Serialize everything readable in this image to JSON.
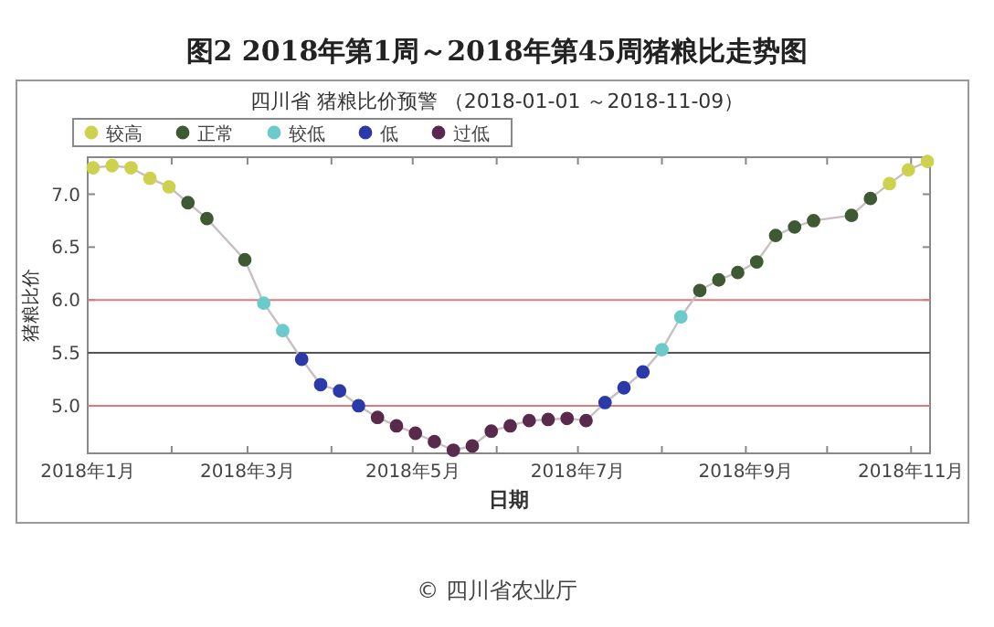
{
  "chart_data": {
    "type": "line",
    "title": "图2  2018年第1周～2018年第45周猪粮比走势图",
    "subtitle": "四川省 猪粮比价预警 （2018-01-01 ～2018-11-09）",
    "xlabel": "日期",
    "ylabel": "猪粮比价",
    "annotations": [
      "© 四川省农业厅"
    ],
    "xlim": [
      "2018-01-01",
      "2018-11-08"
    ],
    "ylim": [
      4.55,
      7.35
    ],
    "xticks": [
      {
        "value": "2018-01-01",
        "label": "2018年1月"
      },
      {
        "value": "2018-02-01",
        "label": null
      },
      {
        "value": "2018-03-01",
        "label": "2018年3月"
      },
      {
        "value": "2018-04-01",
        "label": null
      },
      {
        "value": "2018-05-01",
        "label": "2018年5月"
      },
      {
        "value": "2018-06-01",
        "label": null
      },
      {
        "value": "2018-07-01",
        "label": "2018年7月"
      },
      {
        "value": "2018-08-01",
        "label": null
      },
      {
        "value": "2018-09-01",
        "label": "2018年9月"
      },
      {
        "value": "2018-10-01",
        "label": null
      },
      {
        "value": "2018-11-01",
        "label": "2018年11月"
      }
    ],
    "yticks": [
      {
        "value": 5,
        "label": "5.0"
      },
      {
        "value": 5.5,
        "label": "5.5"
      },
      {
        "value": 6,
        "label": "6.0"
      },
      {
        "value": 6.5,
        "label": "6.5"
      },
      {
        "value": 7,
        "label": "7.0"
      }
    ],
    "ref_lines": [
      {
        "axis": "y",
        "value": 6,
        "color": "#e07a7a"
      },
      {
        "axis": "y",
        "value": 5.5,
        "color": "#555555"
      },
      {
        "axis": "y",
        "value": 5,
        "color": "#e07a7a"
      }
    ],
    "legend": "top left",
    "marker": "circle",
    "series": [
      {
        "marker": "none",
        "color": "#c9bfc3",
        "x": [
          "2018-01-03",
          "2018-01-10",
          "2018-01-17",
          "2018-01-24",
          "2018-01-31",
          "2018-02-07",
          "2018-02-14",
          "2018-02-28",
          "2018-03-07",
          "2018-03-14",
          "2018-03-21",
          "2018-03-28",
          "2018-04-04",
          "2018-04-11",
          "2018-04-18",
          "2018-04-25",
          "2018-05-02",
          "2018-05-09",
          "2018-05-16",
          "2018-05-23",
          "2018-05-30",
          "2018-06-06",
          "2018-06-13",
          "2018-06-20",
          "2018-06-27",
          "2018-07-04",
          "2018-07-11",
          "2018-07-18",
          "2018-07-25",
          "2018-08-01",
          "2018-08-08",
          "2018-08-15",
          "2018-08-22",
          "2018-08-29",
          "2018-09-05",
          "2018-09-12",
          "2018-09-19",
          "2018-09-26",
          "2018-10-10",
          "2018-10-17",
          "2018-10-24",
          "2018-10-31",
          "2018-11-07"
        ],
        "values": [
          7.25,
          7.27,
          7.25,
          7.15,
          7.07,
          6.92,
          6.77,
          6.38,
          5.97,
          5.71,
          5.44,
          5.2,
          5.14,
          5.0,
          4.89,
          4.81,
          4.74,
          4.66,
          4.58,
          4.62,
          4.76,
          4.81,
          4.86,
          4.87,
          4.88,
          4.86,
          5.03,
          5.17,
          5.32,
          5.53,
          5.84,
          6.09,
          6.19,
          6.26,
          6.36,
          6.61,
          6.69,
          6.75,
          6.8,
          6.96,
          7.1,
          7.23,
          7.31
        ]
      },
      {
        "type": "scatter",
        "name": "较高",
        "color": "#cdd24e",
        "x": [
          "2018-01-03",
          "2018-01-10",
          "2018-01-17",
          "2018-01-24",
          "2018-01-31",
          "2018-10-24",
          "2018-10-31",
          "2018-11-07"
        ],
        "values": [
          7.25,
          7.27,
          7.25,
          7.15,
          7.07,
          7.1,
          7.23,
          7.31
        ]
      },
      {
        "type": "scatter",
        "name": "正常",
        "color": "#3e5a32",
        "x": [
          "2018-02-07",
          "2018-02-14",
          "2018-02-28",
          "2018-08-15",
          "2018-08-22",
          "2018-08-29",
          "2018-09-05",
          "2018-09-12",
          "2018-09-19",
          "2018-09-26",
          "2018-10-10",
          "2018-10-17"
        ],
        "values": [
          6.92,
          6.77,
          6.38,
          6.09,
          6.19,
          6.26,
          6.36,
          6.61,
          6.69,
          6.75,
          6.8,
          6.96
        ]
      },
      {
        "type": "scatter",
        "name": "较低",
        "color": "#6ccaca",
        "x": [
          "2018-03-07",
          "2018-03-14",
          "2018-08-01",
          "2018-08-08"
        ],
        "values": [
          5.97,
          5.71,
          5.53,
          5.84
        ]
      },
      {
        "type": "scatter",
        "name": "低",
        "color": "#2b3aa8",
        "x": [
          "2018-03-21",
          "2018-03-28",
          "2018-04-04",
          "2018-04-11",
          "2018-07-11",
          "2018-07-18",
          "2018-07-25"
        ],
        "values": [
          5.44,
          5.2,
          5.14,
          5.0,
          5.03,
          5.17,
          5.32
        ]
      },
      {
        "type": "scatter",
        "name": "过低",
        "color": "#5a2a4c",
        "x": [
          "2018-04-18",
          "2018-04-25",
          "2018-05-02",
          "2018-05-09",
          "2018-05-16",
          "2018-05-23",
          "2018-05-30",
          "2018-06-06",
          "2018-06-13",
          "2018-06-20",
          "2018-06-27",
          "2018-07-04"
        ],
        "values": [
          4.89,
          4.81,
          4.74,
          4.66,
          4.58,
          4.62,
          4.76,
          4.81,
          4.86,
          4.87,
          4.88,
          4.86
        ]
      }
    ]
  }
}
